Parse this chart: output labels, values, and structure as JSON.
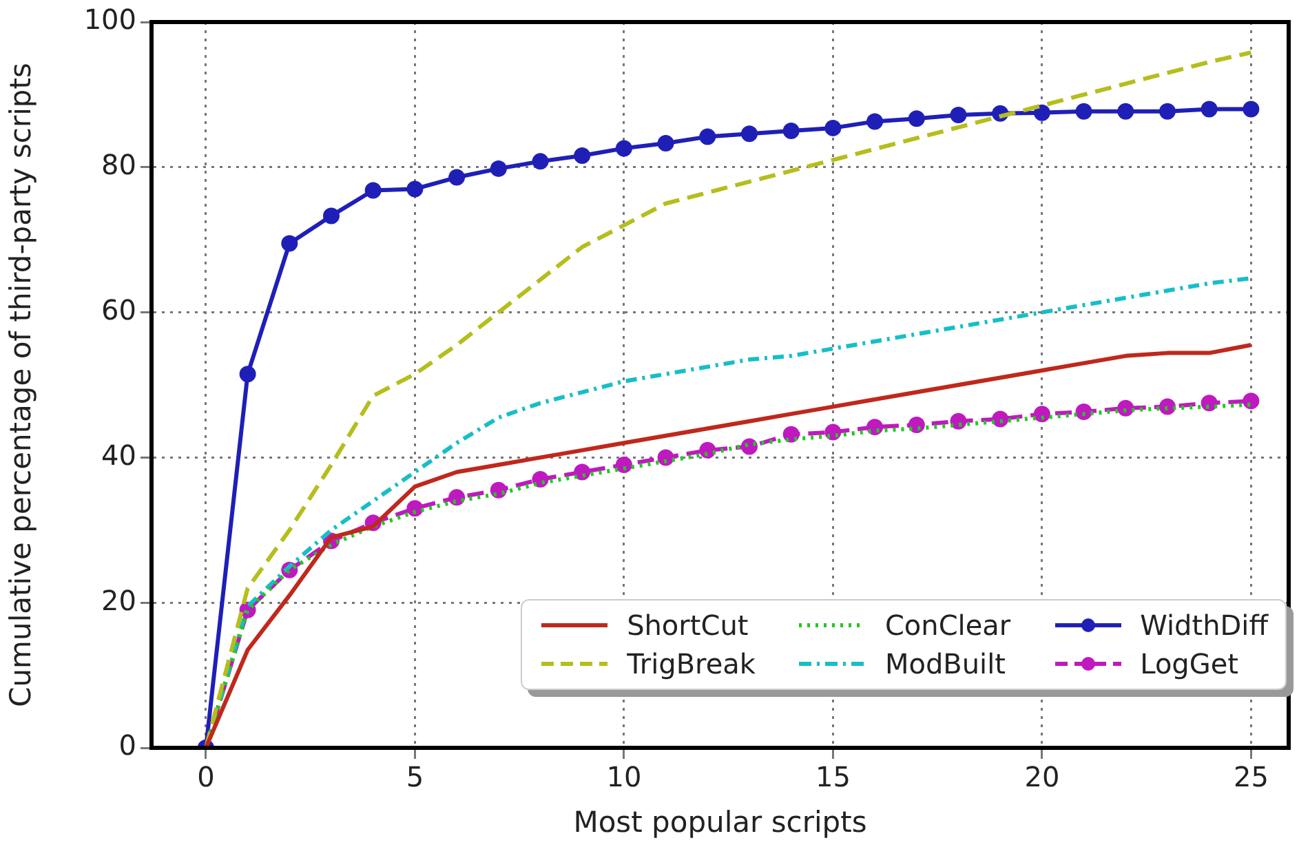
{
  "chart_data": {
    "type": "line",
    "xlabel": "Most popular scripts",
    "ylabel": "Cumulative percentage of third-party scripts",
    "x": [
      0,
      1,
      2,
      3,
      4,
      5,
      6,
      7,
      8,
      9,
      10,
      11,
      12,
      13,
      14,
      15,
      16,
      17,
      18,
      19,
      20,
      21,
      22,
      23,
      24,
      25
    ],
    "xlim": [
      -1.3,
      25.9
    ],
    "xticks": [
      0,
      5,
      10,
      15,
      20,
      25
    ],
    "ylim": [
      0,
      100
    ],
    "yticks": [
      0,
      20,
      40,
      60,
      80,
      100
    ],
    "grid": true,
    "legend": "bottom right",
    "series": [
      {
        "name": "ShortCut",
        "color": "#c0281c",
        "line_style": "solid",
        "marker": "none",
        "values": [
          0,
          13.5,
          21,
          29,
          30.5,
          36,
          38,
          39,
          40,
          41,
          42,
          43,
          44,
          45,
          46,
          47,
          48,
          49,
          50,
          51,
          52,
          53,
          54,
          54.4,
          54.4,
          55.5
        ]
      },
      {
        "name": "TrigBreak",
        "color": "#b5be1c",
        "line_style": "dashed",
        "marker": "none",
        "values": [
          0,
          22,
          30,
          39,
          48.5,
          51.5,
          55.5,
          60,
          64.5,
          69,
          72,
          75,
          76.5,
          78,
          79.5,
          81,
          82.5,
          84,
          85.5,
          87,
          88.5,
          90,
          91.5,
          93,
          94.5,
          95.8
        ]
      },
      {
        "name": "ConClear",
        "color": "#22c922",
        "line_style": "dotted",
        "marker": "none",
        "values": [
          0,
          19,
          24.5,
          28,
          30.5,
          32.5,
          34,
          35,
          36.5,
          37.5,
          38.5,
          39.5,
          40.5,
          41.8,
          42.5,
          43,
          43.7,
          44,
          44.5,
          45,
          45.5,
          46,
          46.5,
          46.8,
          47,
          47.3
        ]
      },
      {
        "name": "ModBuilt",
        "color": "#17bec8",
        "line_style": "dashdot",
        "marker": "none",
        "values": [
          0,
          19.5,
          25,
          30,
          34,
          38,
          42,
          45.5,
          47.5,
          49,
          50.5,
          51.5,
          52.5,
          53.5,
          54,
          55,
          56,
          57,
          58,
          59,
          60,
          61,
          62,
          63,
          64,
          64.7
        ]
      },
      {
        "name": "WidthDiff",
        "color": "#1f1fb8",
        "line_style": "solid",
        "marker": "circle",
        "values": [
          0,
          51.5,
          69.5,
          73.3,
          76.8,
          77,
          78.6,
          79.8,
          80.8,
          81.6,
          82.6,
          83.3,
          84.2,
          84.6,
          85,
          85.4,
          86.3,
          86.7,
          87.2,
          87.4,
          87.5,
          87.7,
          87.7,
          87.7,
          88,
          88
        ]
      },
      {
        "name": "LogGet",
        "color": "#bf19bf",
        "line_style": "dashed",
        "marker": "circle",
        "values": [
          0,
          19,
          24.5,
          28.5,
          31,
          33,
          34.5,
          35.5,
          37,
          38,
          39,
          40,
          41,
          41.5,
          43.2,
          43.5,
          44.2,
          44.5,
          45,
          45.3,
          46,
          46.3,
          46.8,
          47,
          47.5,
          47.8
        ]
      }
    ]
  }
}
